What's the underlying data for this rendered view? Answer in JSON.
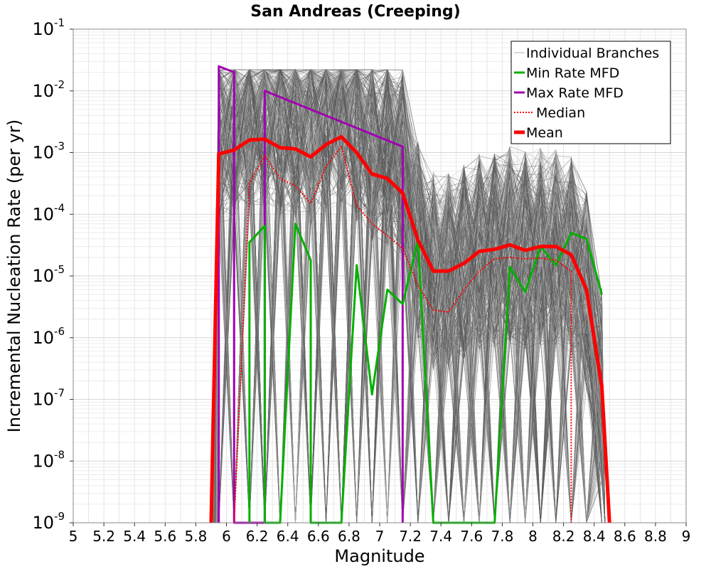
{
  "chart_data": {
    "type": "line",
    "title": "San Andreas (Creeping)",
    "xlabel": "Magnitude",
    "ylabel": "Incremental Nucleation Rate (per yr)",
    "xlim": [
      5,
      9
    ],
    "ylim_log10": [
      -9,
      -1
    ],
    "y_scale": "log",
    "x_ticks": [
      "5",
      "5.2",
      "5.4",
      "5.6",
      "5.8",
      "6",
      "6.2",
      "6.4",
      "6.6",
      "6.8",
      "7",
      "7.2",
      "7.4",
      "7.6",
      "7.8",
      "8",
      "8.2",
      "8.4",
      "8.6",
      "8.8",
      "9"
    ],
    "y_ticks": [
      {
        "base": "10",
        "exp": "-1"
      },
      {
        "base": "10",
        "exp": "-2"
      },
      {
        "base": "10",
        "exp": "-3"
      },
      {
        "base": "10",
        "exp": "-4"
      },
      {
        "base": "10",
        "exp": "-5"
      },
      {
        "base": "10",
        "exp": "-6"
      },
      {
        "base": "10",
        "exp": "-7"
      },
      {
        "base": "10",
        "exp": "-8"
      },
      {
        "base": "10",
        "exp": "-9"
      }
    ],
    "legend": {
      "position": "top-right",
      "entries": [
        {
          "label": "Individual Branches",
          "color": "#b0b0b0",
          "style": "thin"
        },
        {
          "label": "Min Rate MFD",
          "color": "#00b000",
          "style": "solid"
        },
        {
          "label": "Max Rate MFD",
          "color": "#a000b0",
          "style": "solid"
        },
        {
          "label": "Median",
          "color": "#ff0000",
          "style": "dotted"
        },
        {
          "label": "Mean",
          "color": "#ff0000",
          "style": "thick"
        }
      ]
    },
    "series": [
      {
        "name": "Max Rate MFD",
        "color": "#a000b0",
        "x": [
          5.95,
          5.95,
          6.05,
          6.05,
          6.15,
          6.15,
          6.25,
          6.25,
          7.15,
          7.15
        ],
        "y": [
          1e-09,
          0.025,
          0.02,
          1e-09,
          1e-09,
          1e-09,
          1e-09,
          0.01,
          0.00125,
          1e-09
        ]
      },
      {
        "name": "Min Rate MFD",
        "color": "#00b000",
        "x": [
          6.15,
          6.15,
          6.25,
          6.25,
          6.35,
          6.35,
          6.45,
          6.55,
          6.55,
          6.75,
          6.85,
          6.85,
          6.95,
          7.05,
          7.15,
          7.25,
          7.35,
          7.35,
          7.75,
          7.85,
          7.95,
          8.05,
          8.15,
          8.25,
          8.35,
          8.45
        ],
        "y": [
          1e-09,
          3.5e-05,
          6.5e-05,
          1e-09,
          1e-09,
          1e-09,
          7e-05,
          1.8e-05,
          1e-09,
          1e-09,
          1.5e-05,
          1.5e-05,
          1.2e-07,
          6e-06,
          3.5e-06,
          3.8e-05,
          1e-09,
          1e-09,
          1e-09,
          1.4e-05,
          5.5e-06,
          3e-05,
          1.5e-05,
          5e-05,
          4e-05,
          5e-06
        ]
      },
      {
        "name": "Median",
        "color": "#ff0000",
        "x": [
          6.05,
          6.05,
          6.15,
          6.25,
          6.35,
          6.45,
          6.55,
          6.65,
          6.75,
          6.85,
          6.95,
          7.05,
          7.15,
          7.25,
          7.35,
          7.45,
          7.55,
          7.65,
          7.75,
          7.85,
          7.95,
          8.05,
          8.15,
          8.25,
          8.25
        ],
        "y": [
          1e-09,
          1e-09,
          0.00032,
          0.0009,
          0.00038,
          0.00029,
          0.00015,
          0.0006,
          0.00125,
          0.00014,
          7e-05,
          4.5e-05,
          2.8e-05,
          7e-06,
          2.8e-06,
          2.6e-06,
          6e-06,
          1.2e-05,
          1.9e-05,
          2e-05,
          1.9e-05,
          1.95e-05,
          1.8e-05,
          1.2e-05,
          1e-09
        ]
      },
      {
        "name": "Mean",
        "color": "#ff0000",
        "x": [
          5.9,
          5.95,
          6.05,
          6.15,
          6.25,
          6.35,
          6.45,
          6.55,
          6.65,
          6.75,
          6.85,
          6.95,
          7.05,
          7.15,
          7.25,
          7.35,
          7.45,
          7.55,
          7.65,
          7.75,
          7.85,
          7.95,
          8.05,
          8.15,
          8.25,
          8.35,
          8.45,
          8.5
        ],
        "y": [
          1e-09,
          0.00095,
          0.0011,
          0.0016,
          0.00165,
          0.0012,
          0.00115,
          0.00085,
          0.00135,
          0.0018,
          0.001,
          0.00045,
          0.00038,
          0.00022,
          3.8e-05,
          1.2e-05,
          1.2e-05,
          1.6e-05,
          2.5e-05,
          2.7e-05,
          3.2e-05,
          2.6e-05,
          3e-05,
          3e-05,
          2.2e-05,
          6e-06,
          1.6e-07,
          1e-09
        ]
      }
    ]
  }
}
